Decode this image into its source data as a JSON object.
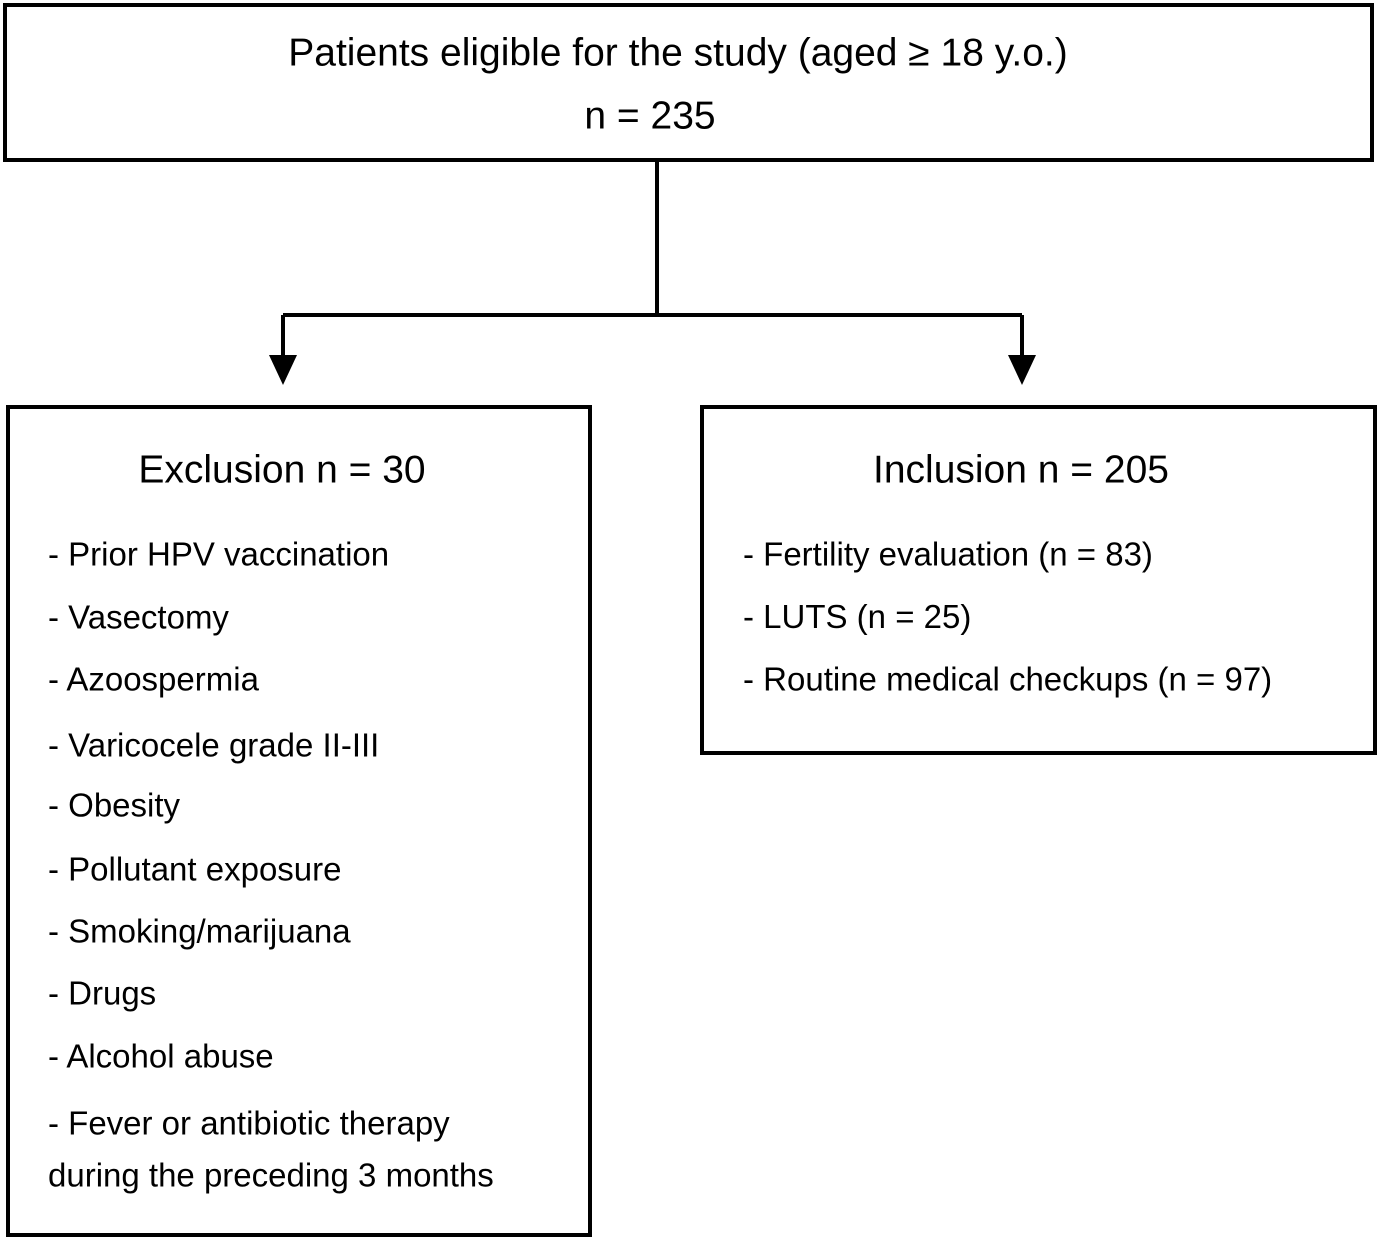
{
  "top": {
    "lines": [
      "Patients eligible for the study (aged ≥ 18 y.o.)",
      "n = 235"
    ]
  },
  "exclusion": {
    "title": "Exclusion n = 30",
    "items": [
      "- Prior HPV vaccination",
      "- Vasectomy",
      "- Azoospermia",
      "- Varicocele grade II-III",
      "- Obesity",
      "- Pollutant exposure",
      "- Smoking/marijuana",
      "- Drugs",
      "- Alcohol abuse",
      [
        "- Fever or antibiotic therapy",
        "during the preceding 3 months"
      ]
    ]
  },
  "inclusion": {
    "title": "Inclusion n = 205",
    "items": [
      "- Fertility evaluation (n = 83)",
      "- LUTS (n = 25)",
      "- Routine medical checkups (n = 97)"
    ]
  }
}
